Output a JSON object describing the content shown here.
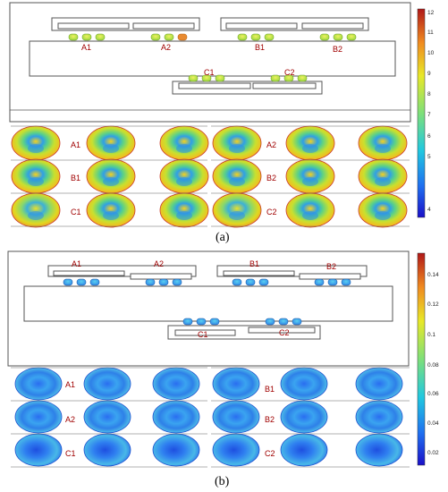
{
  "figure": {
    "caption_a": "(a)",
    "caption_b": "(b)",
    "chip_labels_a": [
      "A1",
      "A2",
      "B1",
      "B2",
      "C1",
      "C2"
    ],
    "chip_labels_b": [
      "A1",
      "A2",
      "B1",
      "B2",
      "C1",
      "C2"
    ],
    "row_labels_a_left": [
      "A1",
      "B1",
      "C1"
    ],
    "row_labels_a_right": [
      "A2",
      "B2",
      "C2"
    ],
    "row_labels_b_left": [
      "A1",
      "A2",
      "C1"
    ],
    "row_labels_b_right": [
      "B1",
      "B2",
      "C2"
    ],
    "colorbar_a_ticks": [
      "12",
      "11",
      "10",
      "9",
      "8",
      "7",
      "6",
      "5",
      "4"
    ],
    "colorbar_b_ticks": [
      "0.14",
      "0.12",
      "0.1",
      "0.08",
      "0.06",
      "0.04",
      "0.02"
    ]
  },
  "colors": {
    "warm_outline": "#c83a2a",
    "cool_outline": "#1e4fd0",
    "frame": "#555555"
  }
}
